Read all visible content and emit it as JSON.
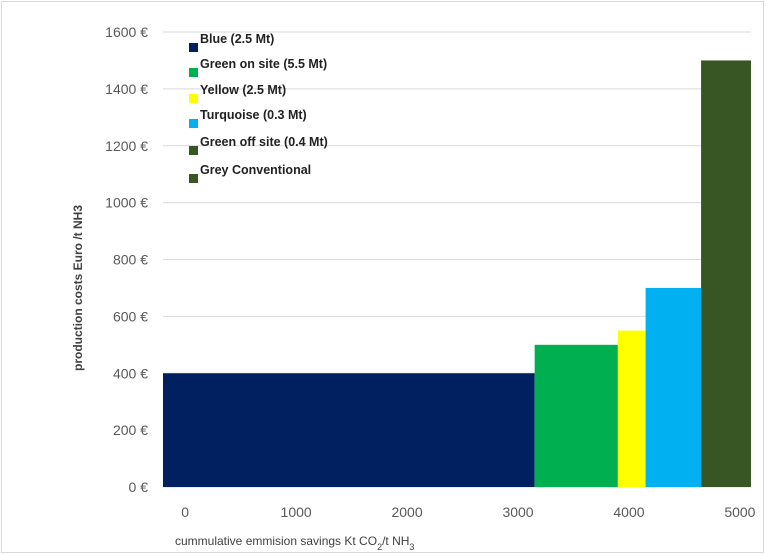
{
  "chart_data": {
    "type": "bar",
    "subtype": "variable-width (marginal abatement cost curve)",
    "title": "",
    "xlabel": "cummulative emmision  savings Kt CO2/t NH3",
    "ylabel": "production costs Euro /t NH3",
    "xlim": [
      -200,
      5100
    ],
    "ylim": [
      0,
      1600
    ],
    "x_ticks": [
      0,
      1000,
      2000,
      3000,
      4000,
      5000
    ],
    "y_ticks": [
      0,
      200,
      400,
      600,
      800,
      1000,
      1200,
      1400,
      1600
    ],
    "y_tick_suffix": " €",
    "grid": "horizontal",
    "legend_position": "top-left",
    "series": [
      {
        "name": "Blue (2.5 Mt)",
        "x_start": -200,
        "x_end": 3150,
        "value": 400,
        "color": "#002060"
      },
      {
        "name": "Green on site  (5.5 Mt)",
        "x_start": 3150,
        "x_end": 3900,
        "value": 500,
        "color": "#00B050"
      },
      {
        "name": "Yellow (2.5 Mt)",
        "x_start": 3900,
        "x_end": 4150,
        "value": 550,
        "color": "#FFFF00"
      },
      {
        "name": "Turquoise (0.3 Mt)",
        "x_start": 4150,
        "x_end": 4650,
        "value": 700,
        "color": "#00B0F0"
      },
      {
        "name": "Green off site  (0.4 Mt)",
        "x_start": 4650,
        "x_end": 5100,
        "value": 1500,
        "color": "#375623"
      },
      {
        "name": "Grey Conventional",
        "x_start": null,
        "x_end": null,
        "value": null,
        "color": "#375623"
      }
    ]
  }
}
